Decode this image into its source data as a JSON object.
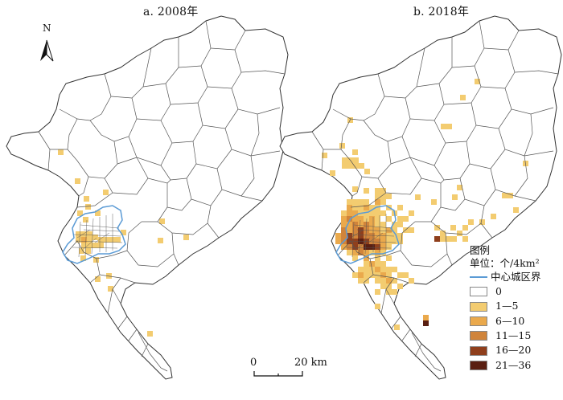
{
  "panels": [
    {
      "title": "a. 2008年"
    },
    {
      "title": "b. 2018年"
    }
  ],
  "north_arrow": {
    "label": "N"
  },
  "scale_bar": {
    "start_label": "0",
    "end_label": "20 km"
  },
  "legend": {
    "title": "图例",
    "unit": "单位：个/4km²",
    "boundary_label": "中心城区界",
    "classes": [
      {
        "label": "0",
        "color": "#ffffff"
      },
      {
        "label": "1—5",
        "color": "#f3cc70"
      },
      {
        "label": "6—10",
        "color": "#eaa94c"
      },
      {
        "label": "11—15",
        "color": "#d0843b"
      },
      {
        "label": "16—20",
        "color": "#8f3f1c"
      },
      {
        "label": "21—36",
        "color": "#5a1f12"
      }
    ]
  },
  "colors": {
    "boundary": "#5b9bd5",
    "district_outline": "#444444"
  }
}
